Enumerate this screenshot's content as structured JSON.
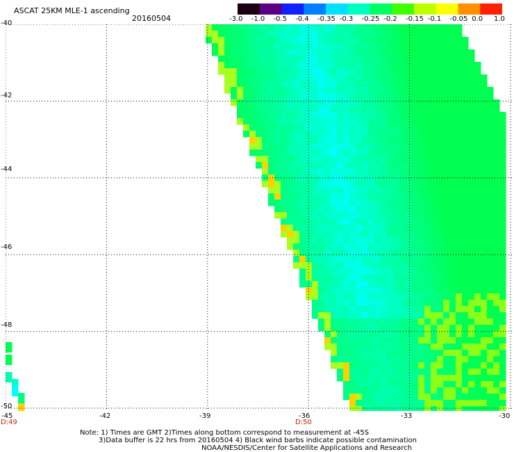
{
  "header": {
    "product": "ASCAT 25KM MLE-1 ascending",
    "date": "20160504"
  },
  "colorbar": {
    "labels": [
      "-3.0",
      "-1.0",
      "-0.5",
      "-0.4",
      "-0.35",
      "-0.3",
      "-0.25",
      "-0.2",
      "-0.15",
      "-0.1",
      "-0.05",
      "0.0",
      "1.0"
    ],
    "colors": [
      "#1a0010",
      "#5a0080",
      "#1020ff",
      "#0080ff",
      "#00e0ff",
      "#00ffc0",
      "#00ff60",
      "#40ff00",
      "#c0ff00",
      "#ffff00",
      "#ff9000",
      "#ff2000"
    ]
  },
  "map": {
    "lat_labels": [
      "-40",
      "-42",
      "-44",
      "-46",
      "-48",
      "-50"
    ],
    "lon_labels": [
      "-45",
      "-42",
      "-39",
      "-36",
      "-33",
      "-30"
    ],
    "lat_range": [
      -50,
      -40
    ],
    "lon_range": [
      -45,
      -30
    ],
    "time_marks": [
      "D:49",
      "D:50"
    ],
    "field_color_main": "#00ff50",
    "field_color_min": "#00ffff"
  },
  "notes": {
    "line1": "Note: 1) Times are GMT 2)Times along bottom correspond to measurement at -45S",
    "line2": "3)Data buffer is 22 hrs from 20160504 4) Black wind barbs indicate possible contamination",
    "line3": "NOAA/NESDIS/Center for Satellite Applications and Research"
  }
}
